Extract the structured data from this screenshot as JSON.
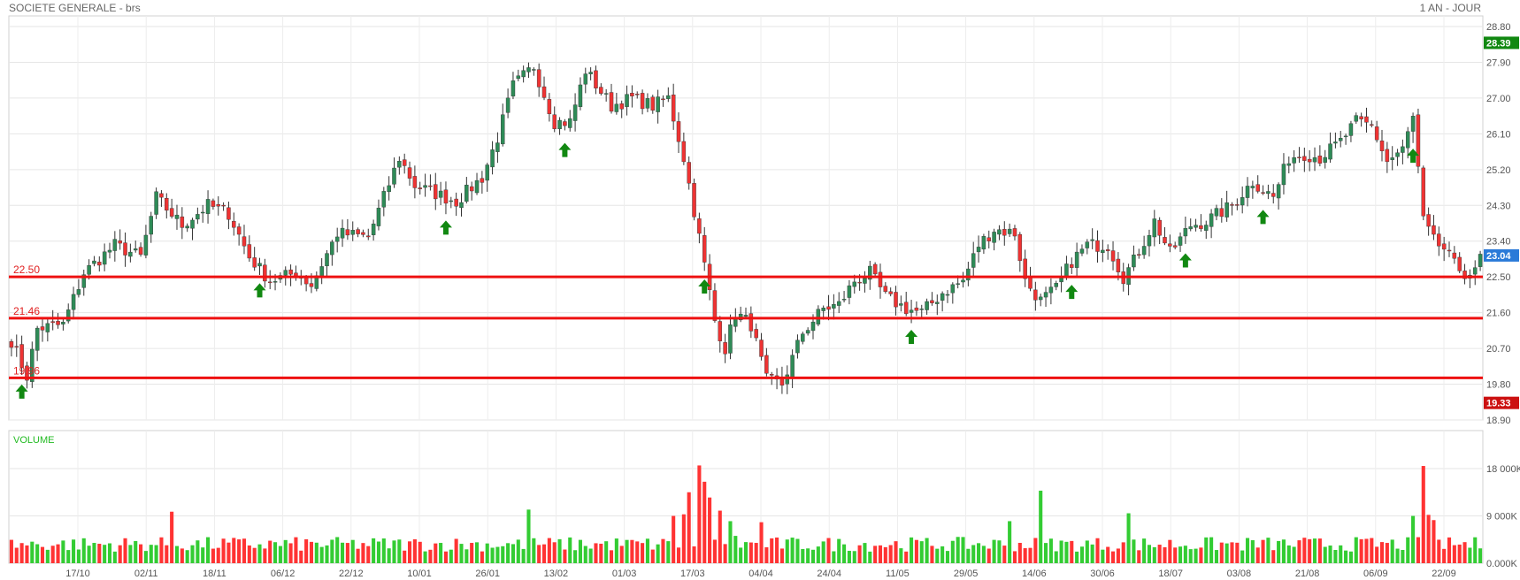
{
  "header": {
    "title": "SOCIETE GENERALE - brs",
    "period": "1 AN - JOUR"
  },
  "chart_data": {
    "type": "candlestick",
    "price_axis": {
      "ylim": [
        18.9,
        28.8
      ],
      "ticks": [
        "28.80",
        "27.90",
        "27.00",
        "26.10",
        "25.20",
        "24.30",
        "23.40",
        "22.50",
        "21.60",
        "20.70",
        "19.80",
        "18.90"
      ]
    },
    "volume_axis": {
      "label": "VOLUME",
      "ylim": [
        0,
        18000
      ],
      "ticks": [
        {
          "value": 18000,
          "label": "18 000K"
        },
        {
          "value": 9000,
          "label": "9 000K"
        },
        {
          "value": 0,
          "label": "0.000K"
        }
      ]
    },
    "x_labels": [
      "17/10",
      "02/11",
      "18/11",
      "06/12",
      "22/12",
      "10/01",
      "26/01",
      "13/02",
      "01/03",
      "17/03",
      "04/04",
      "24/04",
      "11/05",
      "29/05",
      "14/06",
      "30/06",
      "18/07",
      "03/08",
      "21/08",
      "06/09",
      "22/09"
    ],
    "support_levels": [
      {
        "value": 22.5,
        "label": "22.50"
      },
      {
        "value": 21.46,
        "label": "21.46"
      },
      {
        "value": 19.96,
        "label": "19.96"
      }
    ],
    "badges": {
      "high": {
        "value": 28.39,
        "label": "28.39",
        "color": "#118811"
      },
      "last": {
        "value": 23.04,
        "label": "23.04",
        "color": "#2a7ad8"
      },
      "low": {
        "value": 19.33,
        "label": "19.33",
        "color": "#cc1111"
      }
    },
    "colors": {
      "up": "#2e8b57",
      "down": "#ee3333",
      "vol_up": "#33cc33",
      "vol_down": "#ff3333",
      "level": "#ee1111",
      "arrow": "#118811"
    },
    "arrows_at": [
      2,
      48,
      84,
      107,
      134,
      174,
      205,
      227,
      242,
      271,
      299
    ],
    "anchors": [
      [
        0,
        20.9
      ],
      [
        3,
        20.0
      ],
      [
        5,
        21.2
      ],
      [
        10,
        21.3
      ],
      [
        14,
        22.6
      ],
      [
        20,
        23.3
      ],
      [
        25,
        23.0
      ],
      [
        28,
        24.5
      ],
      [
        33,
        23.8
      ],
      [
        38,
        24.3
      ],
      [
        42,
        24.1
      ],
      [
        46,
        23.0
      ],
      [
        50,
        22.4
      ],
      [
        55,
        22.6
      ],
      [
        58,
        22.3
      ],
      [
        63,
        23.6
      ],
      [
        69,
        23.5
      ],
      [
        75,
        25.5
      ],
      [
        78,
        24.8
      ],
      [
        86,
        24.4
      ],
      [
        91,
        25.0
      ],
      [
        94,
        26.0
      ],
      [
        97,
        27.3
      ],
      [
        101,
        27.8
      ],
      [
        105,
        26.4
      ],
      [
        108,
        26.4
      ],
      [
        111,
        27.7
      ],
      [
        116,
        26.8
      ],
      [
        120,
        27.0
      ],
      [
        124,
        26.8
      ],
      [
        127,
        27.0
      ],
      [
        130,
        25.5
      ],
      [
        133,
        23.5
      ],
      [
        136,
        21.4
      ],
      [
        138,
        20.7
      ],
      [
        140,
        21.6
      ],
      [
        143,
        21.3
      ],
      [
        146,
        19.9
      ],
      [
        149,
        19.8
      ],
      [
        153,
        21.1
      ],
      [
        157,
        21.7
      ],
      [
        160,
        21.8
      ],
      [
        163,
        22.4
      ],
      [
        166,
        22.6
      ],
      [
        169,
        22.0
      ],
      [
        173,
        21.7
      ],
      [
        176,
        21.6
      ],
      [
        180,
        22.1
      ],
      [
        184,
        22.4
      ],
      [
        187,
        23.3
      ],
      [
        190,
        23.7
      ],
      [
        194,
        23.6
      ],
      [
        196,
        22.4
      ],
      [
        199,
        21.9
      ],
      [
        202,
        22.2
      ],
      [
        205,
        22.9
      ],
      [
        208,
        23.3
      ],
      [
        212,
        23.3
      ],
      [
        215,
        22.5
      ],
      [
        217,
        22.9
      ],
      [
        221,
        23.9
      ],
      [
        224,
        23.1
      ],
      [
        228,
        23.8
      ],
      [
        231,
        23.9
      ],
      [
        236,
        24.3
      ],
      [
        240,
        24.9
      ],
      [
        244,
        24.5
      ],
      [
        247,
        25.5
      ],
      [
        250,
        25.6
      ],
      [
        253,
        25.5
      ],
      [
        257,
        25.9
      ],
      [
        260,
        26.4
      ],
      [
        263,
        26.3
      ],
      [
        266,
        25.4
      ],
      [
        269,
        25.7
      ],
      [
        271,
        26.5
      ],
      [
        273,
        23.9
      ],
      [
        275,
        23.4
      ],
      [
        277,
        23.2
      ],
      [
        279,
        22.8
      ],
      [
        281,
        22.6
      ],
      [
        283,
        22.6
      ],
      [
        284,
        23.0
      ]
    ]
  }
}
